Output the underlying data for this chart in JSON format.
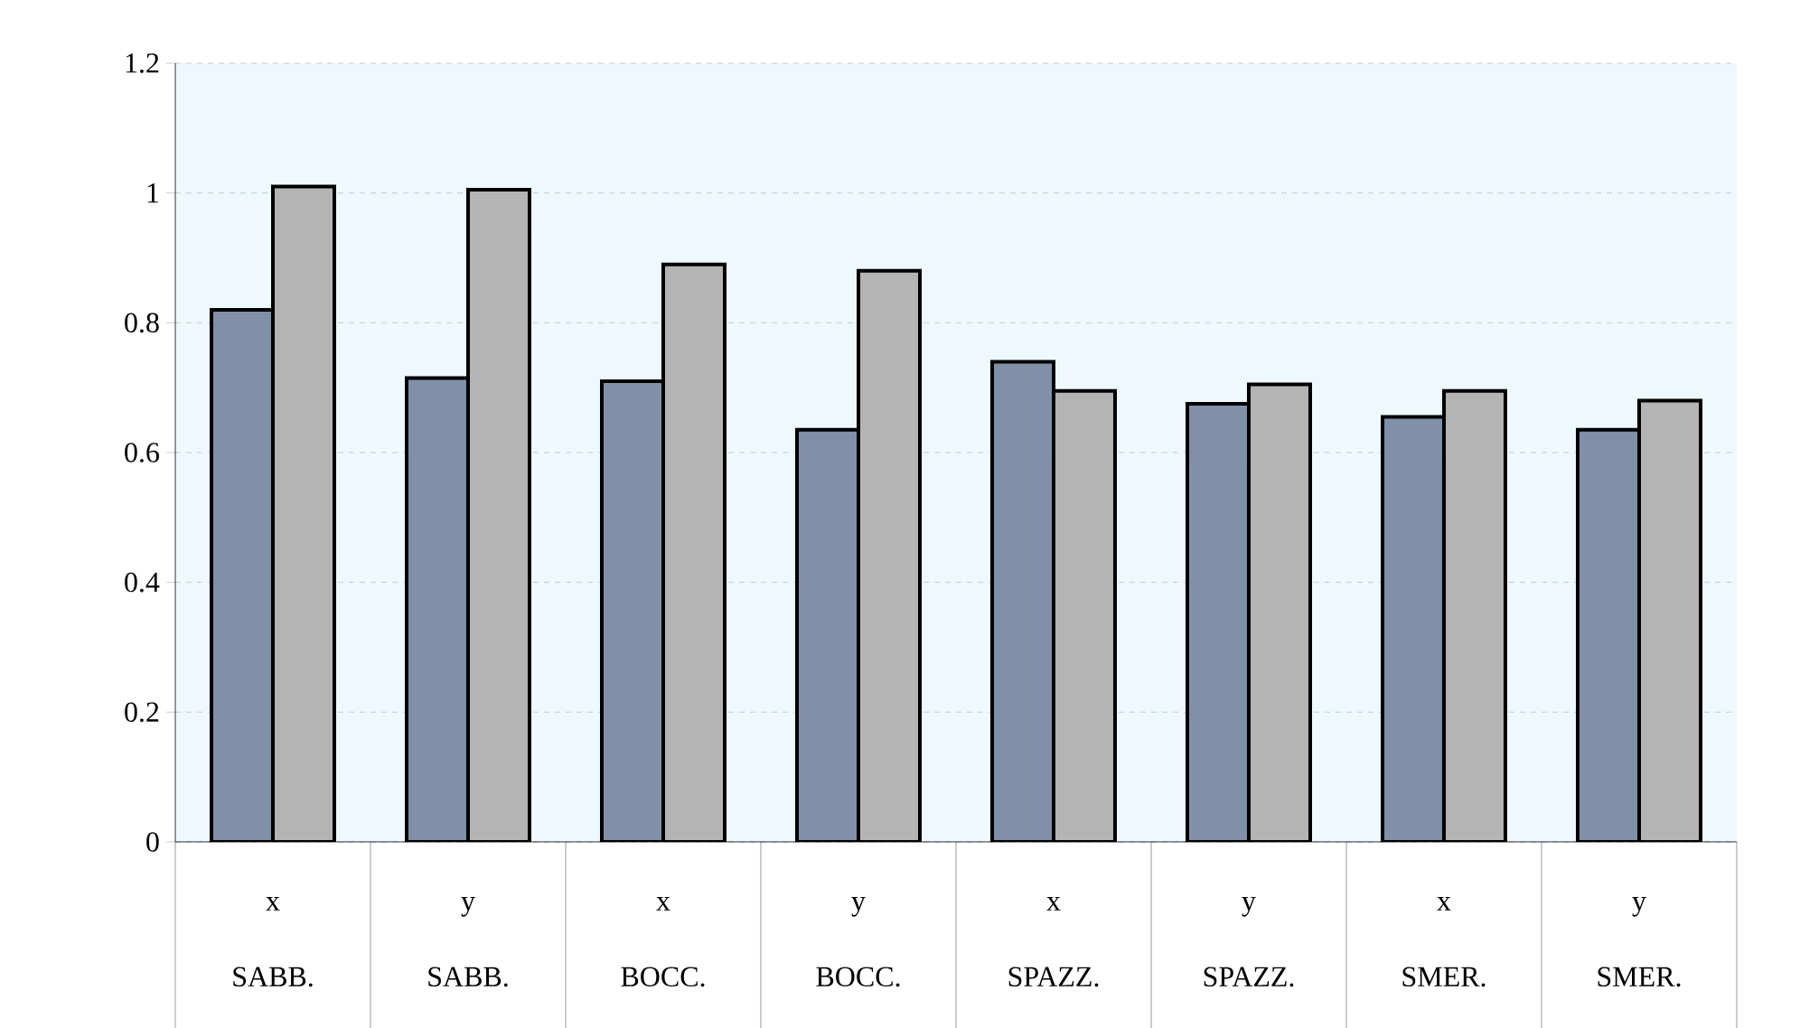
{
  "chart_data": {
    "type": "bar",
    "categories": [
      "x SABB.",
      "y SABB.",
      "x BOCC.",
      "y BOCC.",
      "x SPAZZ.",
      "y SPAZZ.",
      "x SMER.",
      "y SMER."
    ],
    "series": [
      {
        "color": "#8090a8",
        "values": [
          0.82,
          0.715,
          0.71,
          0.635,
          0.74,
          0.675,
          0.655,
          0.635
        ]
      },
      {
        "color": "#b4b4b4",
        "values": [
          1.01,
          1.005,
          0.89,
          0.88,
          0.695,
          0.705,
          0.695,
          0.68
        ]
      }
    ],
    "ylim": [
      0,
      1.2
    ],
    "yticks": [
      0,
      0.2,
      0.4,
      0.6,
      0.8,
      1,
      1.2
    ],
    "grid": "y"
  }
}
